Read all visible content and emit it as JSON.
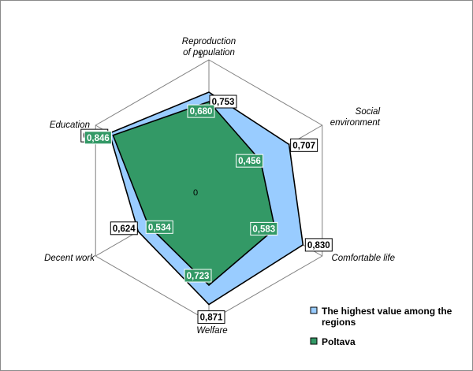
{
  "chart_data": {
    "type": "radar",
    "axes": [
      "Reproduction of population",
      "Social environment",
      "Comfortable life",
      "Welfare",
      "Decent work",
      "Education"
    ],
    "axis_label_lines": [
      [
        "Reproduction",
        "of population"
      ],
      [
        "Social",
        "environment"
      ],
      [
        "Comfortable life"
      ],
      [
        "Welfare"
      ],
      [
        "Decent work"
      ],
      [
        "Education"
      ]
    ],
    "rlim": [
      0,
      1
    ],
    "tick_labels": [
      "0",
      "1"
    ],
    "grid": true,
    "legend_position": "bottom-right",
    "series": [
      {
        "name": "The highest value among the regions",
        "name_lines": [
          "The highest value among the",
          "regions"
        ],
        "values": [
          0.753,
          0.707,
          0.83,
          0.871,
          0.624,
          0.878
        ],
        "labels": [
          "0,753",
          "0,707",
          "0,830",
          "0,871",
          "0,624",
          "0,878"
        ],
        "color": "#99ccff"
      },
      {
        "name": "Poltava",
        "name_lines": [
          "Poltava"
        ],
        "values": [
          0.68,
          0.456,
          0.583,
          0.723,
          0.534,
          0.846
        ],
        "labels": [
          "0,680",
          "0,456",
          "0,583",
          "0,723",
          "0,534",
          "0,846"
        ],
        "color": "#339966"
      }
    ]
  }
}
